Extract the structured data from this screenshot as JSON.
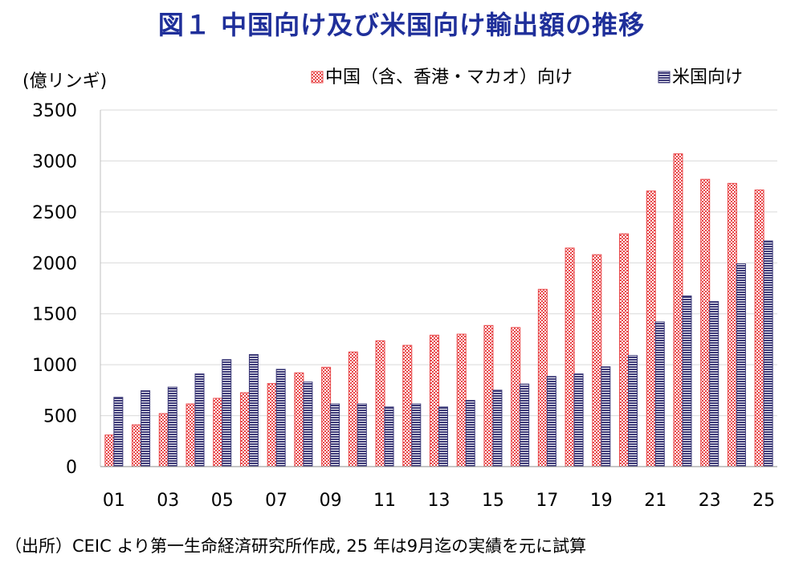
{
  "title": "図１ 中国向け及び米国向け輸出額の推移",
  "source": "（出所）CEIC より第一生命経済研究所作成, 25 年は9月迄の実績を元に試算",
  "chart_data": {
    "type": "bar",
    "ylabel": "(億リンギ)",
    "ylim": [
      0,
      3500
    ],
    "yticks": [
      0,
      500,
      1000,
      1500,
      2000,
      2500,
      3000,
      3500
    ],
    "categories": [
      "01",
      "02",
      "03",
      "04",
      "05",
      "06",
      "07",
      "08",
      "09",
      "10",
      "11",
      "12",
      "13",
      "14",
      "15",
      "16",
      "17",
      "18",
      "19",
      "20",
      "21",
      "22",
      "23",
      "24",
      "25"
    ],
    "xtick_labels_shown": [
      "01",
      "03",
      "05",
      "07",
      "09",
      "11",
      "13",
      "15",
      "17",
      "19",
      "21",
      "23",
      "25"
    ],
    "grid": true,
    "legend_position": "top-right",
    "series": [
      {
        "name": "中国（含、香港・マカオ）向け",
        "color": "#e8484a",
        "values": [
          310,
          410,
          520,
          615,
          670,
          725,
          815,
          920,
          975,
          1125,
          1235,
          1190,
          1290,
          1300,
          1385,
          1365,
          1740,
          2145,
          2080,
          2285,
          2705,
          3070,
          2820,
          2780,
          2715
        ]
      },
      {
        "name": "米国向け",
        "color": "#3d3a78",
        "values": [
          680,
          745,
          780,
          910,
          1050,
          1100,
          955,
          830,
          615,
          615,
          585,
          615,
          585,
          650,
          750,
          810,
          885,
          910,
          980,
          1090,
          1420,
          1675,
          1620,
          1990,
          2215
        ]
      }
    ]
  }
}
